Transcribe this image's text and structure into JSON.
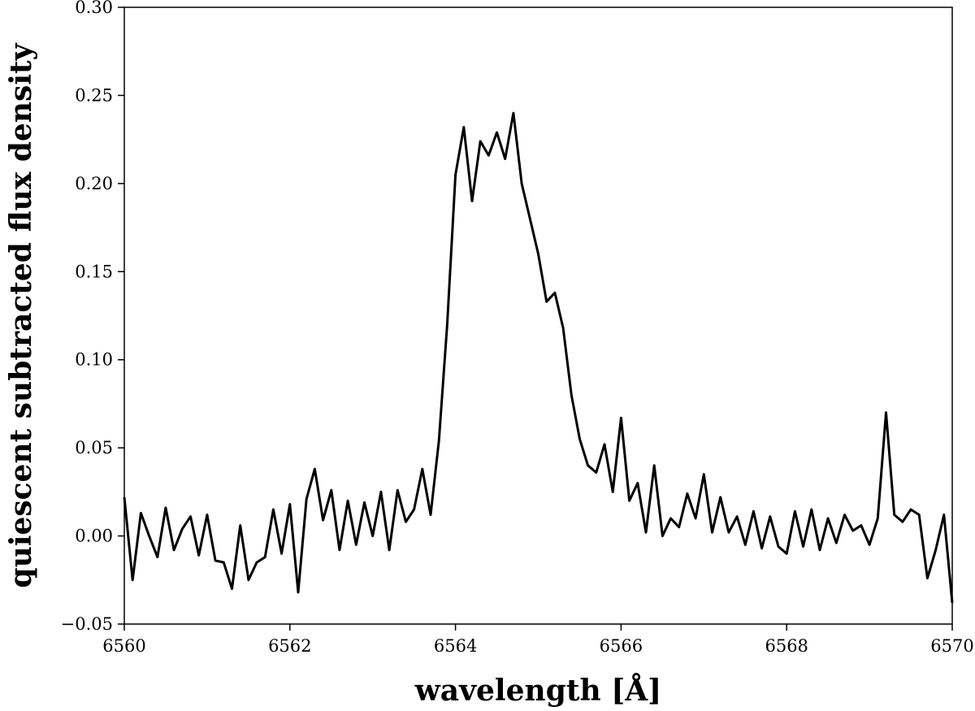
{
  "chart_data": {
    "type": "line",
    "title": "",
    "xlabel": "wavelength [Å]",
    "ylabel": "quiescent subtracted flux density",
    "xlim": [
      6560,
      6570
    ],
    "ylim": [
      -0.05,
      0.3
    ],
    "xticks": [
      6560,
      6562,
      6564,
      6566,
      6568,
      6570
    ],
    "xtick_labels": [
      "6560",
      "6562",
      "6564",
      "6566",
      "6568",
      "6570"
    ],
    "yticks": [
      -0.05,
      0.0,
      0.05,
      0.1,
      0.15,
      0.2,
      0.25,
      0.3
    ],
    "ytick_labels": [
      "−0.05",
      "0.00",
      "0.05",
      "0.10",
      "0.15",
      "0.20",
      "0.25",
      "0.30"
    ],
    "grid": false,
    "line_color": "#000000",
    "series": [
      {
        "x": [
          6560.0,
          6560.1,
          6560.2,
          6560.3,
          6560.4,
          6560.5,
          6560.6,
          6560.7,
          6560.8,
          6560.9,
          6561.0,
          6561.1,
          6561.2,
          6561.3,
          6561.4,
          6561.5,
          6561.6,
          6561.7,
          6561.8,
          6561.9,
          6562.0,
          6562.1,
          6562.2,
          6562.3,
          6562.4,
          6562.5,
          6562.6,
          6562.7,
          6562.8,
          6562.9,
          6563.0,
          6563.1,
          6563.2,
          6563.3,
          6563.4,
          6563.5,
          6563.6,
          6563.7,
          6563.8,
          6563.9,
          6564.0,
          6564.1,
          6564.2,
          6564.3,
          6564.4,
          6564.5,
          6564.6,
          6564.7,
          6564.8,
          6564.9,
          6565.0,
          6565.1,
          6565.2,
          6565.3,
          6565.4,
          6565.5,
          6565.6,
          6565.7,
          6565.8,
          6565.9,
          6566.0,
          6566.1,
          6566.2,
          6566.3,
          6566.4,
          6566.5,
          6566.6,
          6566.7,
          6566.8,
          6566.9,
          6567.0,
          6567.1,
          6567.2,
          6567.3,
          6567.4,
          6567.5,
          6567.6,
          6567.7,
          6567.8,
          6567.9,
          6568.0,
          6568.1,
          6568.2,
          6568.3,
          6568.4,
          6568.5,
          6568.6,
          6568.7,
          6568.8,
          6568.9,
          6569.0,
          6569.1,
          6569.2,
          6569.3,
          6569.4,
          6569.5,
          6569.6,
          6569.7,
          6569.8,
          6569.9,
          6570.0
        ],
        "y": [
          0.022,
          -0.025,
          0.013,
          0.0,
          -0.012,
          0.016,
          -0.008,
          0.004,
          0.011,
          -0.011,
          0.012,
          -0.014,
          -0.015,
          -0.03,
          0.006,
          -0.025,
          -0.015,
          -0.012,
          0.015,
          -0.01,
          0.018,
          -0.032,
          0.021,
          0.038,
          0.009,
          0.026,
          -0.008,
          0.02,
          -0.005,
          0.019,
          0.0,
          0.025,
          -0.008,
          0.026,
          0.008,
          0.015,
          0.038,
          0.012,
          0.054,
          0.12,
          0.205,
          0.232,
          0.19,
          0.224,
          0.216,
          0.229,
          0.214,
          0.24,
          0.2,
          0.18,
          0.16,
          0.133,
          0.138,
          0.118,
          0.08,
          0.055,
          0.04,
          0.036,
          0.052,
          0.025,
          0.067,
          0.02,
          0.03,
          0.002,
          0.04,
          0.0,
          0.01,
          0.005,
          0.024,
          0.01,
          0.035,
          0.002,
          0.022,
          0.002,
          0.011,
          -0.005,
          0.014,
          -0.007,
          0.011,
          -0.006,
          -0.01,
          0.014,
          -0.006,
          0.015,
          -0.008,
          0.01,
          -0.004,
          0.012,
          0.003,
          0.006,
          -0.005,
          0.01,
          0.07,
          0.012,
          0.008,
          0.015,
          0.012,
          -0.024,
          -0.008,
          0.012,
          -0.038
        ]
      }
    ]
  }
}
